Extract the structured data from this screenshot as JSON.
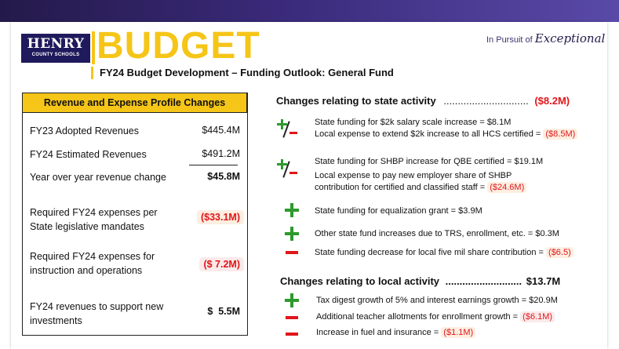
{
  "header": {
    "logo_line1": "HENRY",
    "logo_line2": "COUNTY SCHOOLS",
    "title": "BUDGET",
    "tagline_prefix": "In Pursuit of",
    "tagline_script": "Exceptional",
    "subtitle": "FY24 Budget Development – Funding Outlook: General Fund"
  },
  "profile": {
    "heading": "Revenue and Expense Profile Changes",
    "rows": [
      {
        "label": "FY23 Adopted Revenues",
        "value": "$445.4M"
      },
      {
        "label": "FY24 Estimated Revenues",
        "value": "$491.2M"
      },
      {
        "label": "Year over year revenue change",
        "value": "$45.8M"
      },
      {
        "label": "Required FY24 expenses per State legislative mandates",
        "value": "($33.1M)"
      },
      {
        "label": "Required FY24 expenses for instruction and operations",
        "value": "($ 7.2M)"
      },
      {
        "label": "FY24 revenues to support new investments",
        "value": "$  5.5M"
      }
    ]
  },
  "state": {
    "heading": "Changes relating to state activity",
    "dots": "..............................",
    "total": "($8.2M)",
    "items": [
      {
        "text": "State funding for $2k salary scale increase = $8.1M"
      },
      {
        "text": "Local expense to extend $2k increase to all HCS certified = ",
        "amount": "($8.5M)"
      },
      {
        "text": "State funding for SHBP increase for QBE certified = $19.1M"
      },
      {
        "text": "Local expense to pay new employer share of SHBP"
      },
      {
        "text": "contribution for certified and classified staff  = ",
        "amount": "($24.6M)"
      },
      {
        "text": "State funding for equalization grant = $3.9M"
      },
      {
        "text": "Other state fund increases due to TRS, enrollment, etc. = $0.3M"
      },
      {
        "text": "State funding decrease for local five mil share contribution = ",
        "amount": "($6.5)"
      }
    ]
  },
  "local": {
    "heading": "Changes relating to local activity",
    "dots": "...........................",
    "total": "$13.7M",
    "items": [
      {
        "text": "Tax digest growth of 5% and interest earnings growth = $20.9M"
      },
      {
        "text": "Additional teacher allotments for enrollment growth = ",
        "amount": "($6.1M)"
      },
      {
        "text": "Increase in fuel and insurance = ",
        "amount": "($1.1M)"
      }
    ]
  },
  "colors": {
    "brand_navy": "#1f1a5c",
    "accent_gold": "#f5c518",
    "negative_red": "#e0161b",
    "positive_green": "#2d9a2d"
  },
  "icons": [
    "plus-icon",
    "minus-icon",
    "plus-minus-icon"
  ]
}
